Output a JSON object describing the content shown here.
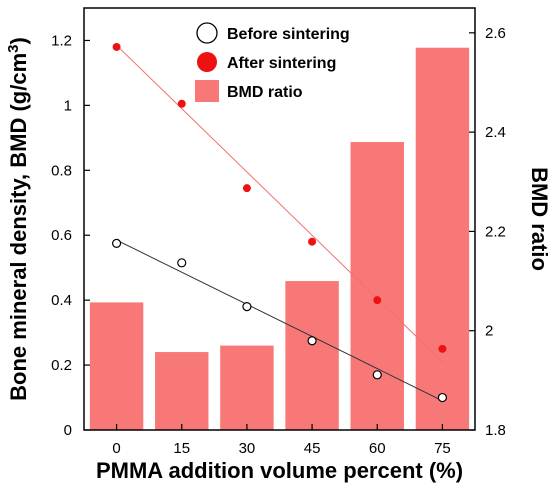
{
  "chart_data": {
    "type": "bar",
    "title": "",
    "xlabel": "PMMA addition volume percent (%)",
    "ylabel_left": "Bone mineral density, BMD (g/cm3)",
    "ylabel_left_main": "Bone mineral density, BMD (g/cm",
    "ylabel_left_sup": "3",
    "ylabel_left_close": ")",
    "ylabel_right": "BMD ratio",
    "categories": [
      "0",
      "15",
      "30",
      "45",
      "60",
      "75"
    ],
    "x": [
      0,
      15,
      30,
      45,
      60,
      75
    ],
    "ylim_left": [
      0,
      1.3
    ],
    "ylim_right": [
      1.8,
      2.65
    ],
    "yticks_left": [
      "0",
      "0.2",
      "0.4",
      "0.6",
      "0.8",
      "1",
      "1.2"
    ],
    "yticks_right": [
      "1.8",
      "2",
      "2.2",
      "2.4",
      "2.6"
    ],
    "grid": false,
    "legend_position": "top-center",
    "series": [
      {
        "name": "Before sintering",
        "kind": "scatter-open",
        "axis": "left",
        "values": [
          0.575,
          0.515,
          0.38,
          0.275,
          0.17,
          0.1
        ],
        "color": "#000000"
      },
      {
        "name": "After sintering",
        "kind": "scatter-filled",
        "axis": "left",
        "values": [
          1.18,
          1.005,
          0.745,
          0.58,
          0.4,
          0.25
        ],
        "color": "#ee1111"
      },
      {
        "name": "BMD ratio",
        "kind": "bar",
        "axis": "right",
        "values": [
          2.057,
          1.957,
          1.97,
          2.1,
          2.38,
          2.57
        ],
        "color": "#f87878"
      }
    ],
    "fit_lines": [
      {
        "series": "Before sintering",
        "from": [
          0,
          0.585
        ],
        "to": [
          75,
          0.09
        ],
        "color": "#333333"
      },
      {
        "series": "After sintering",
        "from": [
          0,
          1.185
        ],
        "to": [
          75,
          0.21
        ],
        "color": "#f07070"
      }
    ]
  }
}
